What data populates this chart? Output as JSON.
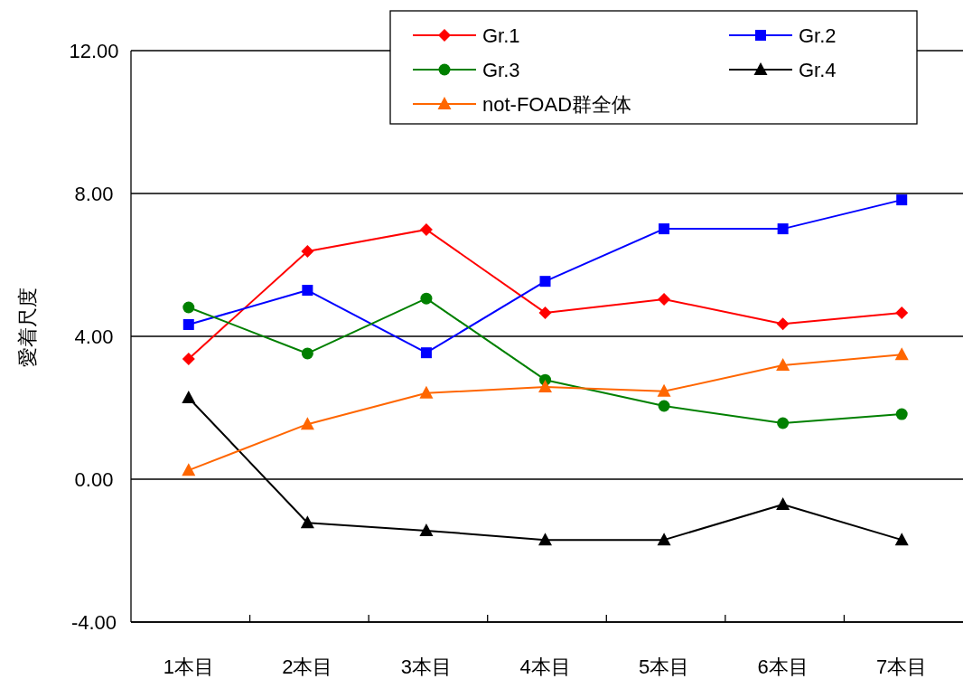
{
  "chart_data": {
    "type": "line",
    "ylabel": "愛着尺度",
    "categories": [
      "1本目",
      "2本目",
      "3本目",
      "4本目",
      "5本目",
      "6本目",
      "7本目"
    ],
    "series": [
      {
        "name": "Gr.1",
        "color": "#ff0000",
        "marker": "diamond",
        "values": [
          3.37,
          6.38,
          6.99,
          4.66,
          5.04,
          4.35,
          4.66
        ]
      },
      {
        "name": "Gr.2",
        "color": "#0000ff",
        "marker": "square",
        "values": [
          4.33,
          5.29,
          3.54,
          5.54,
          7.01,
          7.01,
          7.82
        ]
      },
      {
        "name": "Gr.3",
        "color": "#008000",
        "marker": "circle",
        "values": [
          4.81,
          3.52,
          5.06,
          2.78,
          2.05,
          1.57,
          1.82
        ]
      },
      {
        "name": "Gr.4",
        "color": "#000000",
        "marker": "triangle",
        "values": [
          2.28,
          -1.22,
          -1.44,
          -1.7,
          -1.7,
          -0.71,
          -1.7
        ]
      },
      {
        "name": "not-FOAD群全体",
        "color": "#ff6600",
        "marker": "triangle",
        "values": [
          0.25,
          1.54,
          2.41,
          2.58,
          2.46,
          3.19,
          3.49
        ]
      }
    ],
    "ylim": [
      -4,
      12
    ],
    "yticks": [
      {
        "value": -4,
        "label": "-4.00"
      },
      {
        "value": 0,
        "label": "0.00"
      },
      {
        "value": 4,
        "label": "4.00"
      },
      {
        "value": 8,
        "label": "8.00"
      },
      {
        "value": 12,
        "label": "12.00"
      }
    ],
    "grid": "y",
    "legend": "top right",
    "line_style": "solid"
  }
}
